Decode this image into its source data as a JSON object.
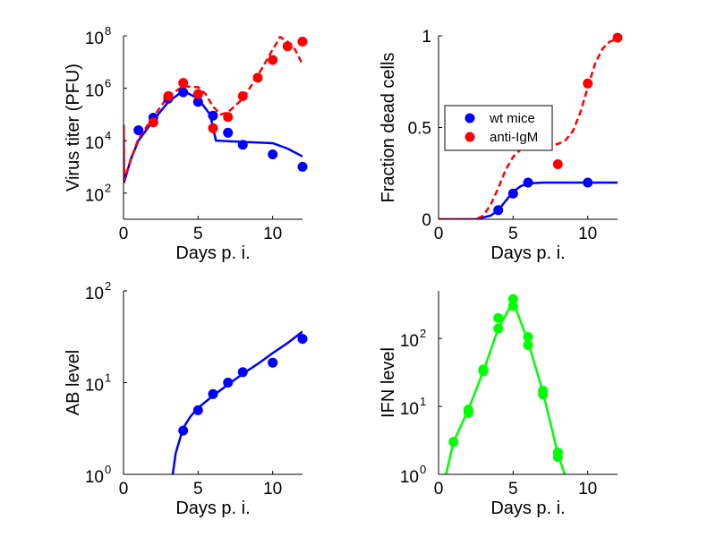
{
  "colors": {
    "wt": "#0000ff",
    "antiIgM": "#ff0000",
    "ifn": "#00ff00",
    "axis": "#000000"
  },
  "chart_data": [
    {
      "type": "scatter",
      "panel": "virus-titer",
      "xlabel": "Days p. i.",
      "ylabel": "Virus titer (PFU)",
      "xlim": [
        0,
        12
      ],
      "ylim": [
        10,
        100000000
      ],
      "yscale": "log",
      "xticks": [
        0,
        5,
        10
      ],
      "xtick_labels": [
        "0",
        "5",
        "10"
      ],
      "yticks": [
        100,
        10000,
        1000000,
        100000000
      ],
      "ytick_labels": [
        {
          "base": "10",
          "exp": "2"
        },
        {
          "base": "10",
          "exp": "4"
        },
        {
          "base": "10",
          "exp": "6"
        },
        {
          "base": "10",
          "exp": "8"
        }
      ],
      "series": [
        {
          "color": "#0000ff",
          "points": [
            [
              1,
              25000
            ],
            [
              2,
              75000
            ],
            [
              3,
              400000
            ],
            [
              4,
              700000
            ],
            [
              5,
              300000
            ],
            [
              6,
              90000
            ],
            [
              7,
              20000
            ],
            [
              8,
              7000
            ],
            [
              10,
              3000
            ],
            [
              12,
              1000
            ]
          ],
          "curve_style": "solid",
          "curve": [
            [
              0,
              250
            ],
            [
              0.01,
              40000
            ],
            [
              0.03,
              250
            ],
            [
              0.5,
              2000
            ],
            [
              1,
              10000
            ],
            [
              2,
              60000
            ],
            [
              3,
              300000
            ],
            [
              4,
              800000
            ],
            [
              5,
              400000
            ],
            [
              5.8,
              100000
            ],
            [
              6.2,
              10000
            ],
            [
              8,
              9000
            ],
            [
              10,
              8000
            ],
            [
              11,
              5000
            ],
            [
              12,
              2500
            ]
          ]
        },
        {
          "color": "#ff0000",
          "points": [
            [
              2,
              50000
            ],
            [
              3,
              500000
            ],
            [
              4,
              1600000
            ],
            [
              5,
              600000
            ],
            [
              6,
              30000
            ],
            [
              7,
              80000
            ],
            [
              8,
              500000
            ],
            [
              9,
              2500000
            ],
            [
              10,
              12000000
            ],
            [
              11,
              40000000
            ],
            [
              12,
              60000000
            ]
          ],
          "curve_style": "dashed",
          "curve": [
            [
              0,
              300
            ],
            [
              0.01,
              40000
            ],
            [
              0.03,
              300
            ],
            [
              0.5,
              2000
            ],
            [
              1,
              12000
            ],
            [
              2,
              80000
            ],
            [
              3,
              500000
            ],
            [
              4,
              1200000
            ],
            [
              5,
              1100000
            ],
            [
              5.5,
              600000
            ],
            [
              6,
              200000
            ],
            [
              6.5,
              100000
            ],
            [
              7,
              120000
            ],
            [
              8,
              400000
            ],
            [
              9,
              3000000
            ],
            [
              10,
              30000000
            ],
            [
              10.5,
              90000000
            ],
            [
              11,
              60000000
            ],
            [
              11.5,
              30000000
            ],
            [
              12,
              8000000
            ]
          ]
        }
      ]
    },
    {
      "type": "scatter",
      "panel": "fraction-dead-cells",
      "xlabel": "Days p. i.",
      "ylabel": "Fraction dead cells",
      "xlim": [
        0,
        12
      ],
      "ylim": [
        0,
        1
      ],
      "xticks": [
        0,
        5,
        10
      ],
      "xtick_labels": [
        "0",
        "5",
        "10"
      ],
      "yticks": [
        0,
        0.5,
        1
      ],
      "ytick_labels": [
        "0",
        "0.5",
        "1"
      ],
      "legend": {
        "position": "center-left",
        "entries": [
          "wt mice",
          "anti-IgM"
        ]
      },
      "series": [
        {
          "name": "wt mice",
          "color": "#0000ff",
          "points": [
            [
              4,
              0.05
            ],
            [
              5,
              0.14
            ],
            [
              6,
              0.2
            ],
            [
              10,
              0.2
            ]
          ],
          "curve_style": "solid",
          "curve": [
            [
              0,
              0
            ],
            [
              2.5,
              0
            ],
            [
              3.5,
              0.02
            ],
            [
              4,
              0.05
            ],
            [
              4.5,
              0.1
            ],
            [
              5,
              0.15
            ],
            [
              5.5,
              0.18
            ],
            [
              6,
              0.195
            ],
            [
              7,
              0.2
            ],
            [
              12,
              0.2
            ]
          ]
        },
        {
          "name": "anti-IgM",
          "color": "#ff0000",
          "points": [
            [
              8,
              0.3
            ],
            [
              10,
              0.74
            ],
            [
              12,
              0.99
            ]
          ],
          "curve_style": "dashed",
          "curve": [
            [
              0,
              0
            ],
            [
              2.5,
              0
            ],
            [
              3,
              0.02
            ],
            [
              3.5,
              0.08
            ],
            [
              4,
              0.17
            ],
            [
              4.5,
              0.27
            ],
            [
              5,
              0.34
            ],
            [
              5.5,
              0.38
            ],
            [
              6,
              0.39
            ],
            [
              7,
              0.4
            ],
            [
              8,
              0.41
            ],
            [
              8.5,
              0.43
            ],
            [
              9,
              0.48
            ],
            [
              9.5,
              0.58
            ],
            [
              10,
              0.72
            ],
            [
              10.5,
              0.85
            ],
            [
              11,
              0.93
            ],
            [
              11.5,
              0.97
            ],
            [
              12,
              0.98
            ]
          ]
        }
      ]
    },
    {
      "type": "scatter",
      "panel": "ab-level",
      "xlabel": "Days p. i.",
      "ylabel": "AB level",
      "xlim": [
        0,
        12
      ],
      "ylim": [
        1,
        100
      ],
      "yscale": "log",
      "xticks": [
        0,
        5,
        10
      ],
      "xtick_labels": [
        "0",
        "5",
        "10"
      ],
      "yticks": [
        1,
        10,
        100
      ],
      "ytick_labels": [
        {
          "base": "10",
          "exp": "0"
        },
        {
          "base": "10",
          "exp": "1"
        },
        {
          "base": "10",
          "exp": "2"
        }
      ],
      "series": [
        {
          "color": "#0000ff",
          "points": [
            [
              4,
              3
            ],
            [
              5,
              5
            ],
            [
              6,
              7.5
            ],
            [
              7,
              10
            ],
            [
              8,
              13
            ],
            [
              10,
              16.5
            ],
            [
              12,
              30
            ]
          ],
          "curve_style": "solid",
          "curve": [
            [
              3.3,
              1
            ],
            [
              3.5,
              1.7
            ],
            [
              4,
              3.2
            ],
            [
              4.5,
              4.3
            ],
            [
              5,
              5.3
            ],
            [
              6,
              7.2
            ],
            [
              7,
              9.5
            ],
            [
              8,
              12.5
            ],
            [
              9,
              16
            ],
            [
              10,
              21
            ],
            [
              11,
              27
            ],
            [
              12,
              36
            ]
          ]
        }
      ]
    },
    {
      "type": "scatter",
      "panel": "ifn-level",
      "xlabel": "Days p. i.",
      "ylabel": "IFN level",
      "xlim": [
        0,
        12
      ],
      "ylim": [
        1,
        500
      ],
      "yscale": "log",
      "xticks": [
        0,
        5,
        10
      ],
      "xtick_labels": [
        "0",
        "5",
        "10"
      ],
      "yticks": [
        1,
        10,
        100
      ],
      "ytick_labels": [
        {
          "base": "10",
          "exp": "0"
        },
        {
          "base": "10",
          "exp": "1"
        },
        {
          "base": "10",
          "exp": "2"
        }
      ],
      "series": [
        {
          "color": "#00ff00",
          "points": [
            [
              1,
              3
            ],
            [
              2,
              8
            ],
            [
              2,
              9
            ],
            [
              3,
              33
            ],
            [
              3,
              35
            ],
            [
              4,
              140
            ],
            [
              4,
              200
            ],
            [
              5,
              300
            ],
            [
              5,
              380
            ],
            [
              6,
              80
            ],
            [
              6,
              105
            ],
            [
              7,
              15
            ],
            [
              7,
              17
            ],
            [
              8,
              1.8
            ],
            [
              8,
              2.1
            ]
          ],
          "curve_style": "solid",
          "curve": [
            [
              0.5,
              1
            ],
            [
              1,
              3
            ],
            [
              2,
              9
            ],
            [
              3,
              33
            ],
            [
              4,
              140
            ],
            [
              5,
              350
            ],
            [
              6,
              90
            ],
            [
              7,
              16
            ],
            [
              8,
              2
            ],
            [
              8.6,
              0.8
            ]
          ]
        }
      ]
    }
  ]
}
